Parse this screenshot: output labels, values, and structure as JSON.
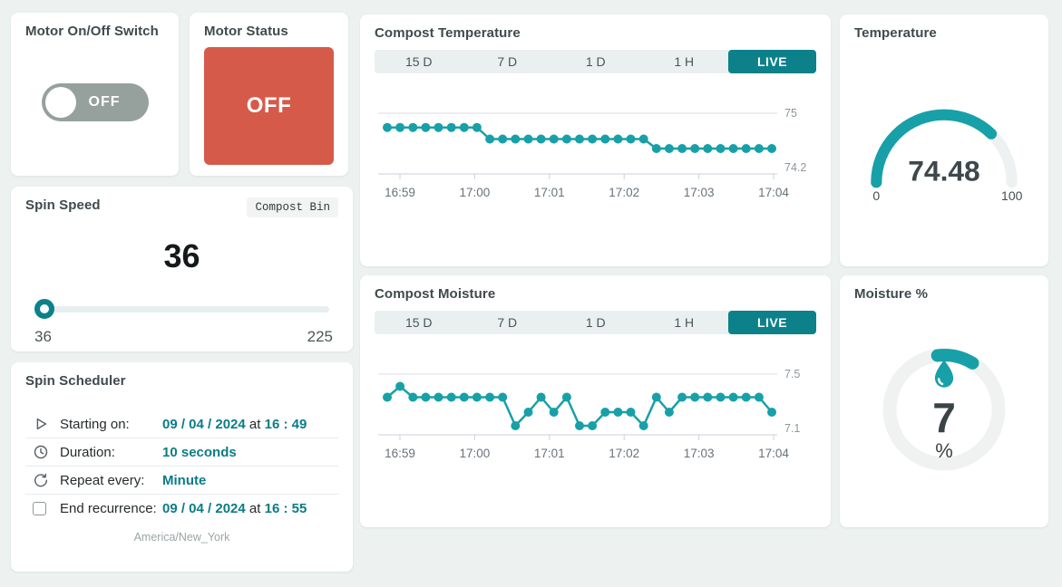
{
  "page": {
    "accent": "#0c818a",
    "chart_color": "#18a0a8",
    "status_red": "#d65a4a",
    "background": "#edf2f1"
  },
  "cards": {
    "motor_switch": {
      "title": "Motor On/Off Switch",
      "state": "off",
      "state_label": "OFF"
    },
    "motor_status": {
      "title": "Motor Status",
      "value": "OFF",
      "color": "#d65a4a"
    },
    "spin_speed": {
      "title": "Spin Speed",
      "badge": "Compost Bin",
      "value": "36",
      "min": "36",
      "max": "225"
    },
    "spin_scheduler": {
      "title": "Spin Scheduler",
      "rows": [
        {
          "icon": "play-icon",
          "label": "Starting on:",
          "date": "09 / 04 / 2024",
          "connector": "at",
          "time": "16 : 49"
        },
        {
          "icon": "clock-icon",
          "label": "Duration:",
          "date": "10 seconds",
          "connector": "",
          "time": ""
        },
        {
          "icon": "repeat-icon",
          "label": "Repeat every:",
          "date": "Minute",
          "connector": "",
          "time": ""
        },
        {
          "icon": "checkbox",
          "label": "End recurrence:",
          "date": "09 / 04 / 2024",
          "connector": "at",
          "time": "16 : 55"
        }
      ],
      "timezone": "America/New_York"
    },
    "temperature_gauge": {
      "title": "Temperature",
      "value": "74.48",
      "min": "0",
      "max": "100",
      "percent": 74.48
    },
    "moisture_gauge": {
      "title": "Moisture %",
      "value": "7",
      "unit": "%",
      "percent": 7
    }
  },
  "chart_tabs": [
    "15 D",
    "7 D",
    "1 D",
    "1 H"
  ],
  "live_label": "LIVE",
  "chart_data": [
    {
      "type": "line",
      "title": "Compost Temperature",
      "x_ticks": [
        "16:59",
        "17:00",
        "17:01",
        "17:02",
        "17:03",
        "17:04"
      ],
      "y_ticks": [
        "75",
        "74.2"
      ],
      "ylim": [
        74.2,
        75
      ],
      "legend": "none",
      "grid": "top-line-only",
      "values": [
        74.79,
        74.79,
        74.79,
        74.79,
        74.79,
        74.79,
        74.79,
        74.79,
        74.62,
        74.62,
        74.62,
        74.62,
        74.62,
        74.62,
        74.62,
        74.62,
        74.62,
        74.62,
        74.62,
        74.62,
        74.62,
        74.48,
        74.48,
        74.48,
        74.48,
        74.48,
        74.48,
        74.48,
        74.48,
        74.48,
        74.48
      ]
    },
    {
      "type": "line",
      "title": "Compost Moisture",
      "x_ticks": [
        "16:59",
        "17:00",
        "17:01",
        "17:02",
        "17:03",
        "17:04"
      ],
      "y_ticks": [
        "7.5",
        "7.1"
      ],
      "ylim": [
        7.1,
        7.5
      ],
      "legend": "none",
      "grid": "top-line-only",
      "values": [
        7.33,
        7.41,
        7.33,
        7.33,
        7.33,
        7.33,
        7.33,
        7.33,
        7.33,
        7.33,
        7.12,
        7.22,
        7.33,
        7.22,
        7.33,
        7.12,
        7.12,
        7.22,
        7.22,
        7.22,
        7.12,
        7.33,
        7.22,
        7.33,
        7.33,
        7.33,
        7.33,
        7.33,
        7.33,
        7.33,
        7.22
      ]
    }
  ]
}
